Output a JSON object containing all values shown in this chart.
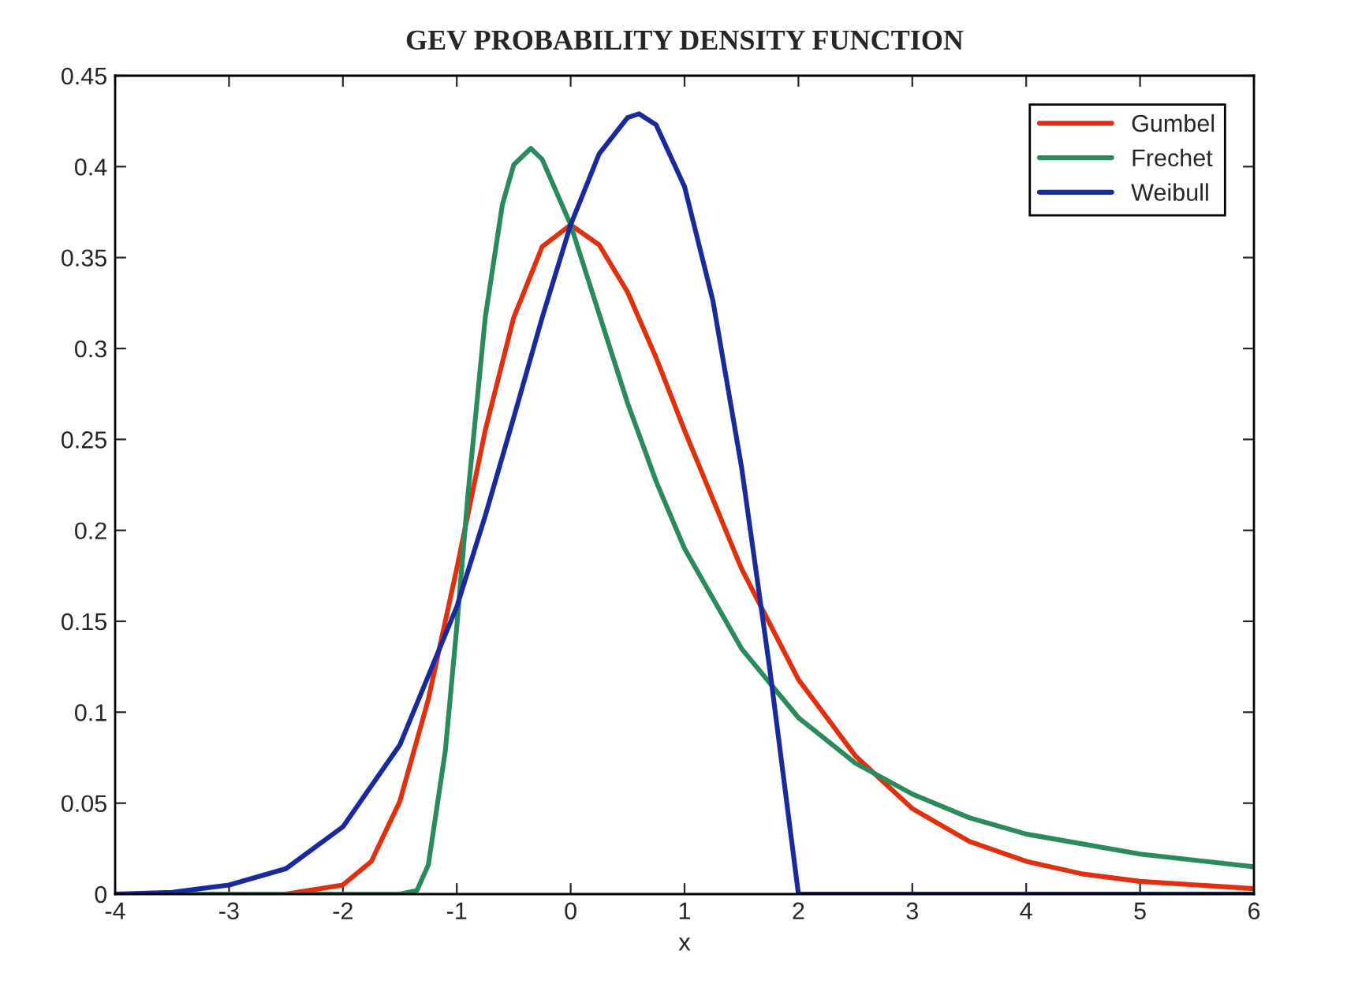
{
  "chart_data": {
    "type": "line",
    "title": "GEV PROBABILITY DENSITY FUNCTION",
    "xlabel": "x",
    "xlim": [
      -4,
      6
    ],
    "xticks": [
      -4,
      -3,
      -2,
      -1,
      0,
      1,
      2,
      3,
      4,
      5,
      6
    ],
    "ylim": [
      0,
      0.45
    ],
    "yticks": [
      0,
      0.05,
      0.1,
      0.15,
      0.2,
      0.25,
      0.3,
      0.35,
      0.4,
      0.45
    ],
    "grid": false,
    "legend": "top right",
    "line_style": "solid",
    "marker": "none",
    "series": [
      {
        "name": "Gumbel",
        "color": "#e0300e",
        "x": [
          -4,
          -3,
          -2.5,
          -2,
          -1.75,
          -1.5,
          -1.25,
          -1,
          -0.75,
          -0.5,
          -0.25,
          0,
          0.25,
          0.5,
          0.75,
          1,
          1.5,
          2,
          2.5,
          3,
          3.5,
          4,
          4.5,
          5,
          6
        ],
        "values": [
          0,
          0,
          0,
          0.005,
          0.018,
          0.051,
          0.107,
          0.179,
          0.255,
          0.317,
          0.356,
          0.368,
          0.357,
          0.331,
          0.295,
          0.255,
          0.179,
          0.118,
          0.076,
          0.047,
          0.029,
          0.018,
          0.011,
          0.007,
          0.003
        ]
      },
      {
        "name": "Frechet",
        "color": "#2a8a5c",
        "x": [
          -4,
          -2,
          -1.5,
          -1.35,
          -1.25,
          -1.1,
          -1,
          -0.9,
          -0.75,
          -0.6,
          -0.5,
          -0.35,
          -0.25,
          0,
          0.25,
          0.5,
          0.75,
          1,
          1.5,
          2,
          2.5,
          3,
          3.5,
          4,
          5,
          6
        ],
        "values": [
          0,
          0,
          0,
          0.002,
          0.016,
          0.079,
          0.147,
          0.221,
          0.317,
          0.379,
          0.401,
          0.41,
          0.404,
          0.368,
          0.319,
          0.27,
          0.227,
          0.19,
          0.135,
          0.097,
          0.072,
          0.055,
          0.042,
          0.033,
          0.022,
          0.015
        ]
      },
      {
        "name": "Weibull",
        "color": "#1a2a9c",
        "x": [
          -4,
          -3.5,
          -3,
          -2.5,
          -2,
          -1.5,
          -1,
          -0.75,
          -0.5,
          -0.25,
          0,
          0.25,
          0.5,
          0.6,
          0.75,
          1,
          1.25,
          1.5,
          1.75,
          2,
          3,
          4,
          5,
          6
        ],
        "values": [
          0,
          0.001,
          0.005,
          0.014,
          0.037,
          0.082,
          0.158,
          0.208,
          0.262,
          0.317,
          0.368,
          0.407,
          0.427,
          0.429,
          0.423,
          0.389,
          0.326,
          0.235,
          0.123,
          0,
          0,
          0,
          0,
          0
        ]
      }
    ]
  }
}
